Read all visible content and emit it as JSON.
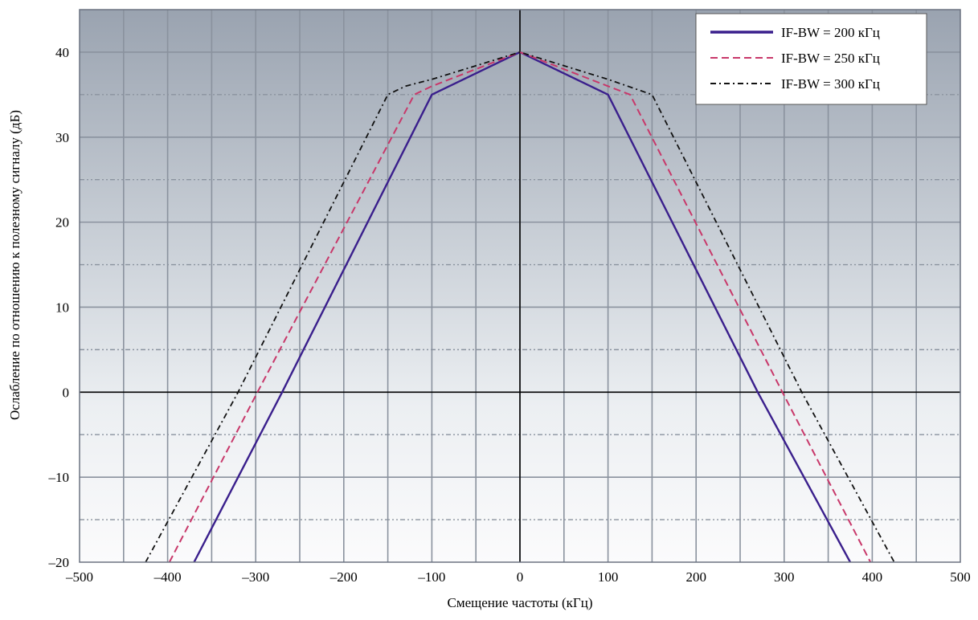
{
  "chart_data": {
    "type": "line",
    "xlabel": "Смещение частоты (кГц)",
    "ylabel": "Ослабление по отношению к полезному сигналу (дБ)",
    "xlim": [
      -500,
      500
    ],
    "ylim": [
      -20,
      45
    ],
    "xticks": [
      -500,
      -400,
      -300,
      -200,
      -100,
      0,
      100,
      200,
      300,
      400,
      500
    ],
    "yticks": [
      -20,
      -10,
      0,
      10,
      20,
      30,
      40
    ],
    "xtick_labels": [
      "–500",
      "–400",
      "–300",
      "–200",
      "–100",
      "0",
      "100",
      "200",
      "300",
      "400",
      "500"
    ],
    "ytick_labels": [
      "–20",
      "–10",
      "0",
      "10",
      "20",
      "30",
      "40"
    ],
    "grid": true,
    "minor_gridlines_y": [
      -15,
      -5,
      5,
      15,
      25,
      35
    ],
    "legend_position": "top-right",
    "series": [
      {
        "name": "IF-BW = 200 кГц",
        "color": "#3a1f8c",
        "style": "solid",
        "x": [
          -370,
          -270,
          -100,
          0,
          100,
          270,
          375
        ],
        "y": [
          -20,
          0,
          35,
          40,
          35,
          0,
          -20
        ]
      },
      {
        "name": "IF-BW = 250 кГц",
        "color": "#c8386a",
        "style": "dashed",
        "x": [
          -398,
          -298,
          -120,
          -100,
          0,
          100,
          125,
          298,
          398
        ],
        "y": [
          -20,
          0,
          35,
          36,
          40,
          36,
          35,
          0,
          -20
        ]
      },
      {
        "name": "IF-BW = 300 кГц",
        "color": "#111111",
        "style": "dashdot",
        "x": [
          -425,
          -320,
          -150,
          -130,
          -100,
          0,
          100,
          150,
          320,
          425
        ],
        "y": [
          -20,
          0,
          35,
          36,
          36.8,
          40,
          36.8,
          35,
          0,
          -20
        ]
      }
    ]
  }
}
